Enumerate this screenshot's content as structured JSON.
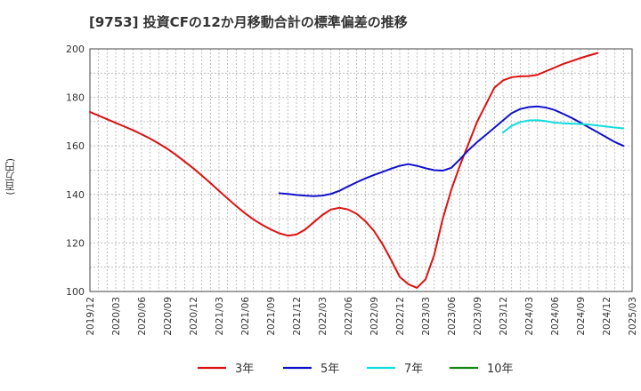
{
  "chart_data": {
    "type": "line",
    "title": "[9753]  投資CFの12か月移動合計の標準偏差の推移",
    "ylabel": "(百万円)",
    "xlabel": "",
    "ylim": [
      100,
      200
    ],
    "yticks": [
      100,
      120,
      140,
      160,
      180,
      200
    ],
    "xlim": [
      "2019-12",
      "2025-03"
    ],
    "xticks": [
      "2019/12",
      "2020/03",
      "2020/06",
      "2020/09",
      "2020/12",
      "2021/03",
      "2021/06",
      "2021/09",
      "2021/12",
      "2022/03",
      "2022/06",
      "2022/09",
      "2022/12",
      "2023/03",
      "2023/06",
      "2023/09",
      "2023/12",
      "2024/03",
      "2024/06",
      "2024/09",
      "2024/12",
      "2025/03"
    ],
    "grid": true,
    "legend_position": "bottom",
    "series": [
      {
        "name": "3年",
        "color": "#dd1111",
        "points": [
          [
            "2019-12",
            174
          ],
          [
            "2020-01",
            172.5
          ],
          [
            "2020-02",
            171
          ],
          [
            "2020-03",
            169.5
          ],
          [
            "2020-04",
            168
          ],
          [
            "2020-05",
            166.5
          ],
          [
            "2020-06",
            164.8
          ],
          [
            "2020-07",
            163
          ],
          [
            "2020-08",
            161
          ],
          [
            "2020-09",
            158.8
          ],
          [
            "2020-10",
            156.3
          ],
          [
            "2020-11",
            153.6
          ],
          [
            "2020-12",
            150.8
          ],
          [
            "2021-01",
            147.8
          ],
          [
            "2021-02",
            144.7
          ],
          [
            "2021-03",
            141.5
          ],
          [
            "2021-04",
            138.3
          ],
          [
            "2021-05",
            135.2
          ],
          [
            "2021-06",
            132.3
          ],
          [
            "2021-07",
            129.7
          ],
          [
            "2021-08",
            127.5
          ],
          [
            "2021-09",
            125.6
          ],
          [
            "2021-10",
            124
          ],
          [
            "2021-11",
            123
          ],
          [
            "2021-12",
            123.5
          ],
          [
            "2022-01",
            125.5
          ],
          [
            "2022-02",
            128.5
          ],
          [
            "2022-03",
            131.5
          ],
          [
            "2022-04",
            133.8
          ],
          [
            "2022-05",
            134.5
          ],
          [
            "2022-06",
            133.8
          ],
          [
            "2022-07",
            132
          ],
          [
            "2022-08",
            129
          ],
          [
            "2022-09",
            125
          ],
          [
            "2022-10",
            119.5
          ],
          [
            "2022-11",
            113
          ],
          [
            "2022-12",
            106
          ],
          [
            "2023-01",
            103
          ],
          [
            "2023-02",
            101.5
          ],
          [
            "2023-03",
            105
          ],
          [
            "2023-04",
            115
          ],
          [
            "2023-05",
            130
          ],
          [
            "2023-06",
            142
          ],
          [
            "2023-07",
            152
          ],
          [
            "2023-08",
            161
          ],
          [
            "2023-09",
            170
          ],
          [
            "2023-10",
            177
          ],
          [
            "2023-11",
            184
          ],
          [
            "2023-12",
            187
          ],
          [
            "2024-01",
            188.3
          ],
          [
            "2024-02",
            188.7
          ],
          [
            "2024-03",
            188.8
          ],
          [
            "2024-04",
            189.3
          ],
          [
            "2024-05",
            190.8
          ],
          [
            "2024-06",
            192.3
          ],
          [
            "2024-07",
            193.8
          ],
          [
            "2024-08",
            195
          ],
          [
            "2024-09",
            196.2
          ],
          [
            "2024-10",
            197.3
          ],
          [
            "2024-11",
            198.3
          ]
        ]
      },
      {
        "name": "5年",
        "color": "#1111cc",
        "points": [
          [
            "2021-10",
            140.5
          ],
          [
            "2021-11",
            140.2
          ],
          [
            "2021-12",
            139.8
          ],
          [
            "2022-01",
            139.5
          ],
          [
            "2022-02",
            139.3
          ],
          [
            "2022-03",
            139.5
          ],
          [
            "2022-04",
            140.2
          ],
          [
            "2022-05",
            141.5
          ],
          [
            "2022-06",
            143.3
          ],
          [
            "2022-07",
            145
          ],
          [
            "2022-08",
            146.6
          ],
          [
            "2022-09",
            148
          ],
          [
            "2022-10",
            149.3
          ],
          [
            "2022-11",
            150.6
          ],
          [
            "2022-12",
            151.8
          ],
          [
            "2023-01",
            152.5
          ],
          [
            "2023-02",
            151.8
          ],
          [
            "2023-03",
            150.8
          ],
          [
            "2023-04",
            150
          ],
          [
            "2023-05",
            149.8
          ],
          [
            "2023-06",
            151
          ],
          [
            "2023-07",
            154.5
          ],
          [
            "2023-08",
            158.3
          ],
          [
            "2023-09",
            161.6
          ],
          [
            "2023-10",
            164.5
          ],
          [
            "2023-11",
            167.5
          ],
          [
            "2023-12",
            170.5
          ],
          [
            "2024-01",
            173.5
          ],
          [
            "2024-02",
            175.2
          ],
          [
            "2024-03",
            176
          ],
          [
            "2024-04",
            176.3
          ],
          [
            "2024-05",
            175.8
          ],
          [
            "2024-06",
            174.8
          ],
          [
            "2024-07",
            173.2
          ],
          [
            "2024-08",
            171.5
          ],
          [
            "2024-09",
            169.6
          ],
          [
            "2024-10",
            167.6
          ],
          [
            "2024-11",
            165.6
          ],
          [
            "2024-12",
            163.6
          ],
          [
            "2025-01",
            161.6
          ],
          [
            "2025-02",
            160
          ]
        ]
      },
      {
        "name": "7年",
        "color": "#11dddd",
        "points": [
          [
            "2023-12",
            165.5
          ],
          [
            "2024-01",
            168.3
          ],
          [
            "2024-02",
            169.8
          ],
          [
            "2024-03",
            170.5
          ],
          [
            "2024-04",
            170.6
          ],
          [
            "2024-05",
            170.2
          ],
          [
            "2024-06",
            169.6
          ],
          [
            "2024-07",
            169.3
          ],
          [
            "2024-08",
            169.2
          ],
          [
            "2024-09",
            169
          ],
          [
            "2024-10",
            168.8
          ],
          [
            "2024-11",
            168.4
          ],
          [
            "2024-12",
            168
          ],
          [
            "2025-01",
            167.6
          ],
          [
            "2025-02",
            167.2
          ]
        ]
      },
      {
        "name": "10年",
        "color": "#118811",
        "points": []
      }
    ]
  }
}
